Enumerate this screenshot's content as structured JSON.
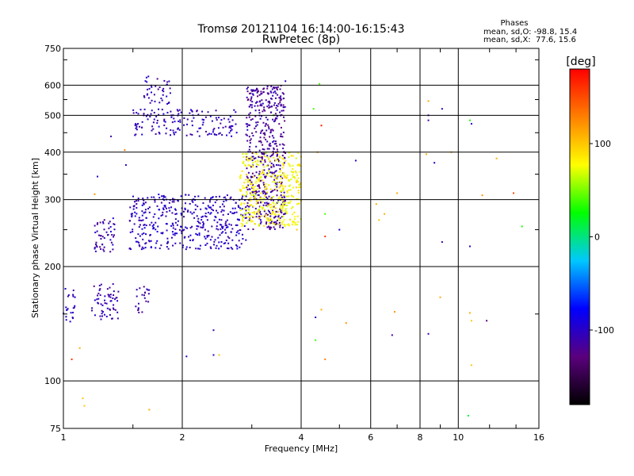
{
  "chart_data": {
    "type": "scatter",
    "title": "Tromsø 20121104 16:14:00-16:15:43",
    "subtitle": "RwPretec (8p)",
    "xlabel": "Frequency [MHz]",
    "ylabel": "Stationary phase Virtual Height [km]",
    "x_scale": "log",
    "y_scale": "log",
    "xlim": [
      1,
      16
    ],
    "ylim": [
      75,
      750
    ],
    "x_ticks": [
      1,
      2,
      4,
      6,
      8,
      10,
      16
    ],
    "y_ticks": [
      75,
      100,
      200,
      300,
      400,
      500,
      600,
      750
    ],
    "x_gridlines": [
      2,
      4,
      6,
      8,
      10
    ],
    "y_gridlines": [
      100,
      200,
      300,
      400,
      500,
      600
    ],
    "grid": true,
    "stats": {
      "heading": "Phases",
      "line_o": "mean, sd,O: -98.8, 15.4",
      "line_x": "mean, sd,X:  77.6, 15.6"
    },
    "colorbar": {
      "label": "[deg]",
      "range": [
        -180,
        180
      ],
      "ticks": [
        100,
        0,
        -100
      ],
      "colors": [
        "#000000",
        "#5a007d",
        "#0000ff",
        "#00c8ff",
        "#00ff00",
        "#ffff00",
        "#ff8000",
        "#ff0000"
      ]
    },
    "clusters": [
      {
        "name": "low-height O spread",
        "x_range": [
          1.0,
          1.07
        ],
        "y_range": [
          140,
          180
        ],
        "n": 22,
        "phase": -100
      },
      {
        "name": "low-height O group 2",
        "x_range": [
          1.18,
          1.38
        ],
        "y_range": [
          145,
          180
        ],
        "n": 60,
        "phase": -110
      },
      {
        "name": "low-height O group 3",
        "x_range": [
          1.52,
          1.65
        ],
        "y_range": [
          150,
          180
        ],
        "n": 22,
        "phase": -110
      },
      {
        "name": "F-region O cusp",
        "x_range": [
          1.2,
          1.35
        ],
        "y_range": [
          218,
          270
        ],
        "n": 50,
        "phase": -110
      },
      {
        "name": "F1 O trace",
        "x_range": [
          1.47,
          2.9
        ],
        "y_range": [
          222,
          310
        ],
        "n": 420,
        "phase": -100
      },
      {
        "name": "F2 O trace",
        "x_range": [
          2.9,
          3.65
        ],
        "y_range": [
          250,
          600
        ],
        "n": 520,
        "phase": -115
      },
      {
        "name": "F2 X trace",
        "x_range": [
          2.8,
          4.0
        ],
        "y_range": [
          255,
          400
        ],
        "n": 380,
        "phase": 80
      },
      {
        "name": "upper O echo band",
        "x_range": [
          1.5,
          2.75
        ],
        "y_range": [
          440,
          520
        ],
        "n": 150,
        "phase": -105
      },
      {
        "name": "upper O echo top",
        "x_range": [
          1.6,
          1.88
        ],
        "y_range": [
          535,
          640
        ],
        "n": 40,
        "phase": -110
      }
    ],
    "scattered_points": [
      {
        "x": 1.12,
        "y": 90,
        "phase": 100
      },
      {
        "x": 1.13,
        "y": 86,
        "phase": 100
      },
      {
        "x": 1.65,
        "y": 84,
        "phase": 110
      },
      {
        "x": 1.1,
        "y": 122,
        "phase": 110
      },
      {
        "x": 1.05,
        "y": 114,
        "phase": 160
      },
      {
        "x": 2.05,
        "y": 116,
        "phase": -100
      },
      {
        "x": 2.4,
        "y": 117,
        "phase": -100
      },
      {
        "x": 2.48,
        "y": 117,
        "phase": 100
      },
      {
        "x": 2.4,
        "y": 136,
        "phase": -110
      },
      {
        "x": 4.35,
        "y": 147,
        "phase": -100
      },
      {
        "x": 4.5,
        "y": 154,
        "phase": 110
      },
      {
        "x": 4.6,
        "y": 114,
        "phase": 130
      },
      {
        "x": 4.35,
        "y": 128,
        "phase": 40
      },
      {
        "x": 5.2,
        "y": 142,
        "phase": 120
      },
      {
        "x": 6.8,
        "y": 132,
        "phase": -110
      },
      {
        "x": 6.9,
        "y": 152,
        "phase": 120
      },
      {
        "x": 8.4,
        "y": 133,
        "phase": -110
      },
      {
        "x": 9.0,
        "y": 166,
        "phase": 110
      },
      {
        "x": 10.7,
        "y": 151,
        "phase": 110
      },
      {
        "x": 10.8,
        "y": 144,
        "phase": 100
      },
      {
        "x": 11.8,
        "y": 144,
        "phase": -130
      },
      {
        "x": 10.8,
        "y": 110,
        "phase": 100
      },
      {
        "x": 10.6,
        "y": 81,
        "phase": 15
      },
      {
        "x": 4.6,
        "y": 240,
        "phase": 160
      },
      {
        "x": 4.6,
        "y": 275,
        "phase": 40
      },
      {
        "x": 5.0,
        "y": 250,
        "phase": -100
      },
      {
        "x": 5.5,
        "y": 380,
        "phase": -100
      },
      {
        "x": 6.2,
        "y": 292,
        "phase": 110
      },
      {
        "x": 6.3,
        "y": 265,
        "phase": 100
      },
      {
        "x": 6.5,
        "y": 275,
        "phase": 110
      },
      {
        "x": 7.0,
        "y": 312,
        "phase": 110
      },
      {
        "x": 8.3,
        "y": 395,
        "phase": 110
      },
      {
        "x": 8.7,
        "y": 375,
        "phase": -100
      },
      {
        "x": 9.1,
        "y": 232,
        "phase": -110
      },
      {
        "x": 9.6,
        "y": 400,
        "phase": 110
      },
      {
        "x": 10.7,
        "y": 226,
        "phase": -100
      },
      {
        "x": 10.8,
        "y": 475,
        "phase": -100
      },
      {
        "x": 10.7,
        "y": 485,
        "phase": 30
      },
      {
        "x": 8.4,
        "y": 485,
        "phase": -110
      },
      {
        "x": 8.4,
        "y": 500,
        "phase": -105
      },
      {
        "x": 9.1,
        "y": 520,
        "phase": -100
      },
      {
        "x": 8.4,
        "y": 545,
        "phase": 110
      },
      {
        "x": 4.45,
        "y": 605,
        "phase": 40
      },
      {
        "x": 4.5,
        "y": 470,
        "phase": 170
      },
      {
        "x": 4.3,
        "y": 520,
        "phase": 40
      },
      {
        "x": 4.4,
        "y": 400,
        "phase": 110
      },
      {
        "x": 13.8,
        "y": 312,
        "phase": 150
      },
      {
        "x": 12.5,
        "y": 385,
        "phase": 110
      },
      {
        "x": 14.5,
        "y": 255,
        "phase": 30
      },
      {
        "x": 11.5,
        "y": 308,
        "phase": 120
      },
      {
        "x": 1.43,
        "y": 405,
        "phase": 130
      },
      {
        "x": 1.44,
        "y": 370,
        "phase": -100
      },
      {
        "x": 1.32,
        "y": 440,
        "phase": -110
      },
      {
        "x": 1.22,
        "y": 345,
        "phase": -100
      },
      {
        "x": 1.2,
        "y": 310,
        "phase": 120
      },
      {
        "x": 3.65,
        "y": 615,
        "phase": -100
      },
      {
        "x": 3.4,
        "y": 500,
        "phase": 40
      },
      {
        "x": 3.9,
        "y": 250,
        "phase": 100
      }
    ]
  }
}
